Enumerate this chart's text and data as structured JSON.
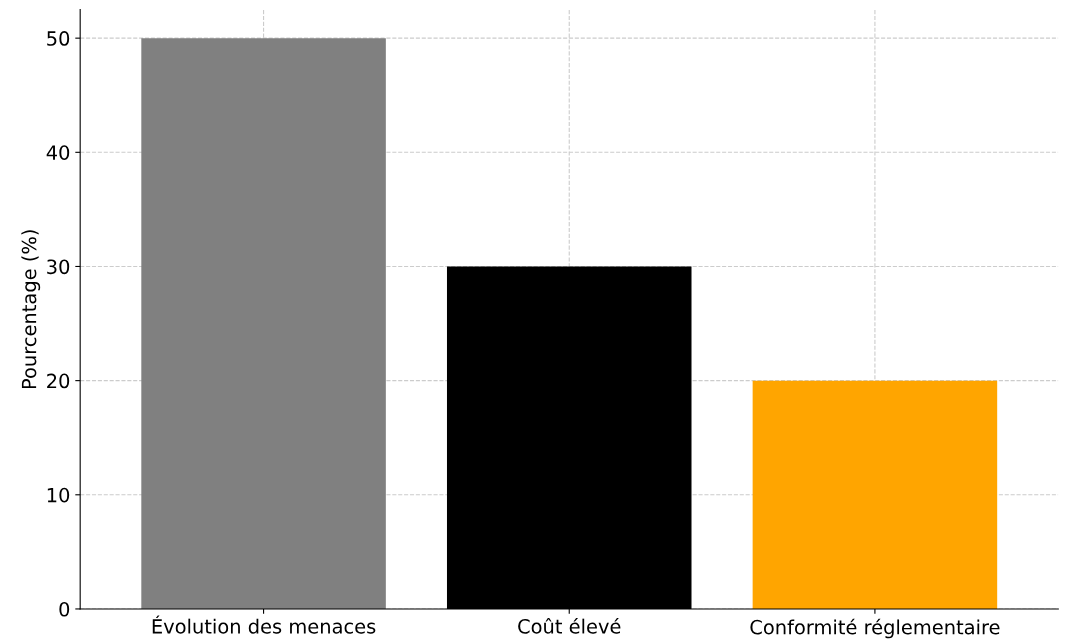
{
  "chart_data": {
    "type": "bar",
    "ylabel": "Pourcentage (%)",
    "categories": [
      "Évolution des menaces",
      "Coût élevé",
      "Conformité réglementaire"
    ],
    "values": [
      50,
      30,
      20
    ],
    "colors": [
      "#808080",
      "#000000",
      "#ffa500"
    ],
    "ylim": [
      0,
      52.5
    ],
    "yticks": [
      0,
      10,
      20,
      30,
      40,
      50
    ],
    "grid": true
  }
}
